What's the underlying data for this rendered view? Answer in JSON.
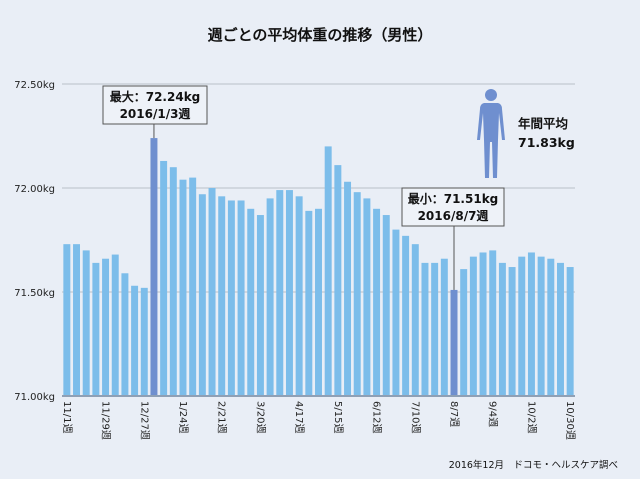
{
  "chart_data": {
    "type": "bar",
    "title": "週ごとの平均体重の推移（男性）",
    "xlabel": "",
    "ylabel": "",
    "ylim": [
      71.0,
      72.5
    ],
    "yticks": [
      "71.00kg",
      "71.50kg",
      "72.00kg",
      "72.50kg"
    ],
    "ytick_values": [
      71.0,
      71.5,
      72.0,
      72.5
    ],
    "grid": true,
    "xtick_labels": [
      {
        "index": 0,
        "label": "11/1週"
      },
      {
        "index": 4,
        "label": "11/29週"
      },
      {
        "index": 8,
        "label": "12/27週"
      },
      {
        "index": 12,
        "label": "1/24週"
      },
      {
        "index": 16,
        "label": "2/21週"
      },
      {
        "index": 20,
        "label": "3/20週"
      },
      {
        "index": 24,
        "label": "4/17週"
      },
      {
        "index": 28,
        "label": "5/15週"
      },
      {
        "index": 32,
        "label": "6/12週"
      },
      {
        "index": 36,
        "label": "7/10週"
      },
      {
        "index": 40,
        "label": "8/7週"
      },
      {
        "index": 44,
        "label": "9/4週"
      },
      {
        "index": 48,
        "label": "10/2週"
      },
      {
        "index": 52,
        "label": "10/30週"
      }
    ],
    "values": [
      71.73,
      71.73,
      71.7,
      71.64,
      71.66,
      71.68,
      71.59,
      71.53,
      71.52,
      72.24,
      72.13,
      72.1,
      72.04,
      72.05,
      71.97,
      72.0,
      71.96,
      71.94,
      71.94,
      71.9,
      71.87,
      71.95,
      71.99,
      71.99,
      71.96,
      71.89,
      71.9,
      72.2,
      72.11,
      72.03,
      71.98,
      71.95,
      71.9,
      71.87,
      71.8,
      71.77,
      71.73,
      71.64,
      71.64,
      71.66,
      71.51,
      71.61,
      71.67,
      71.69,
      71.7,
      71.64,
      71.62,
      71.67,
      71.69,
      71.67,
      71.66,
      71.64,
      71.62
    ],
    "highlight_indices": [
      9,
      40
    ],
    "colors": {
      "bar": "#7cbdea",
      "highlight": "#6f8fcf",
      "grid": "#b9c0c8",
      "axis": "#8fa0b5"
    },
    "annotations": {
      "max": {
        "index": 9,
        "line1": "最大：72.24kg",
        "line2": "2016/1/3週"
      },
      "min": {
        "index": 40,
        "line1": "最小：71.51kg",
        "line2": "2016/8/7週"
      },
      "average": {
        "label": "年間平均",
        "value": "71.83kg"
      }
    },
    "source": "2016年12月　ドコモ・ヘルスケア調べ"
  }
}
